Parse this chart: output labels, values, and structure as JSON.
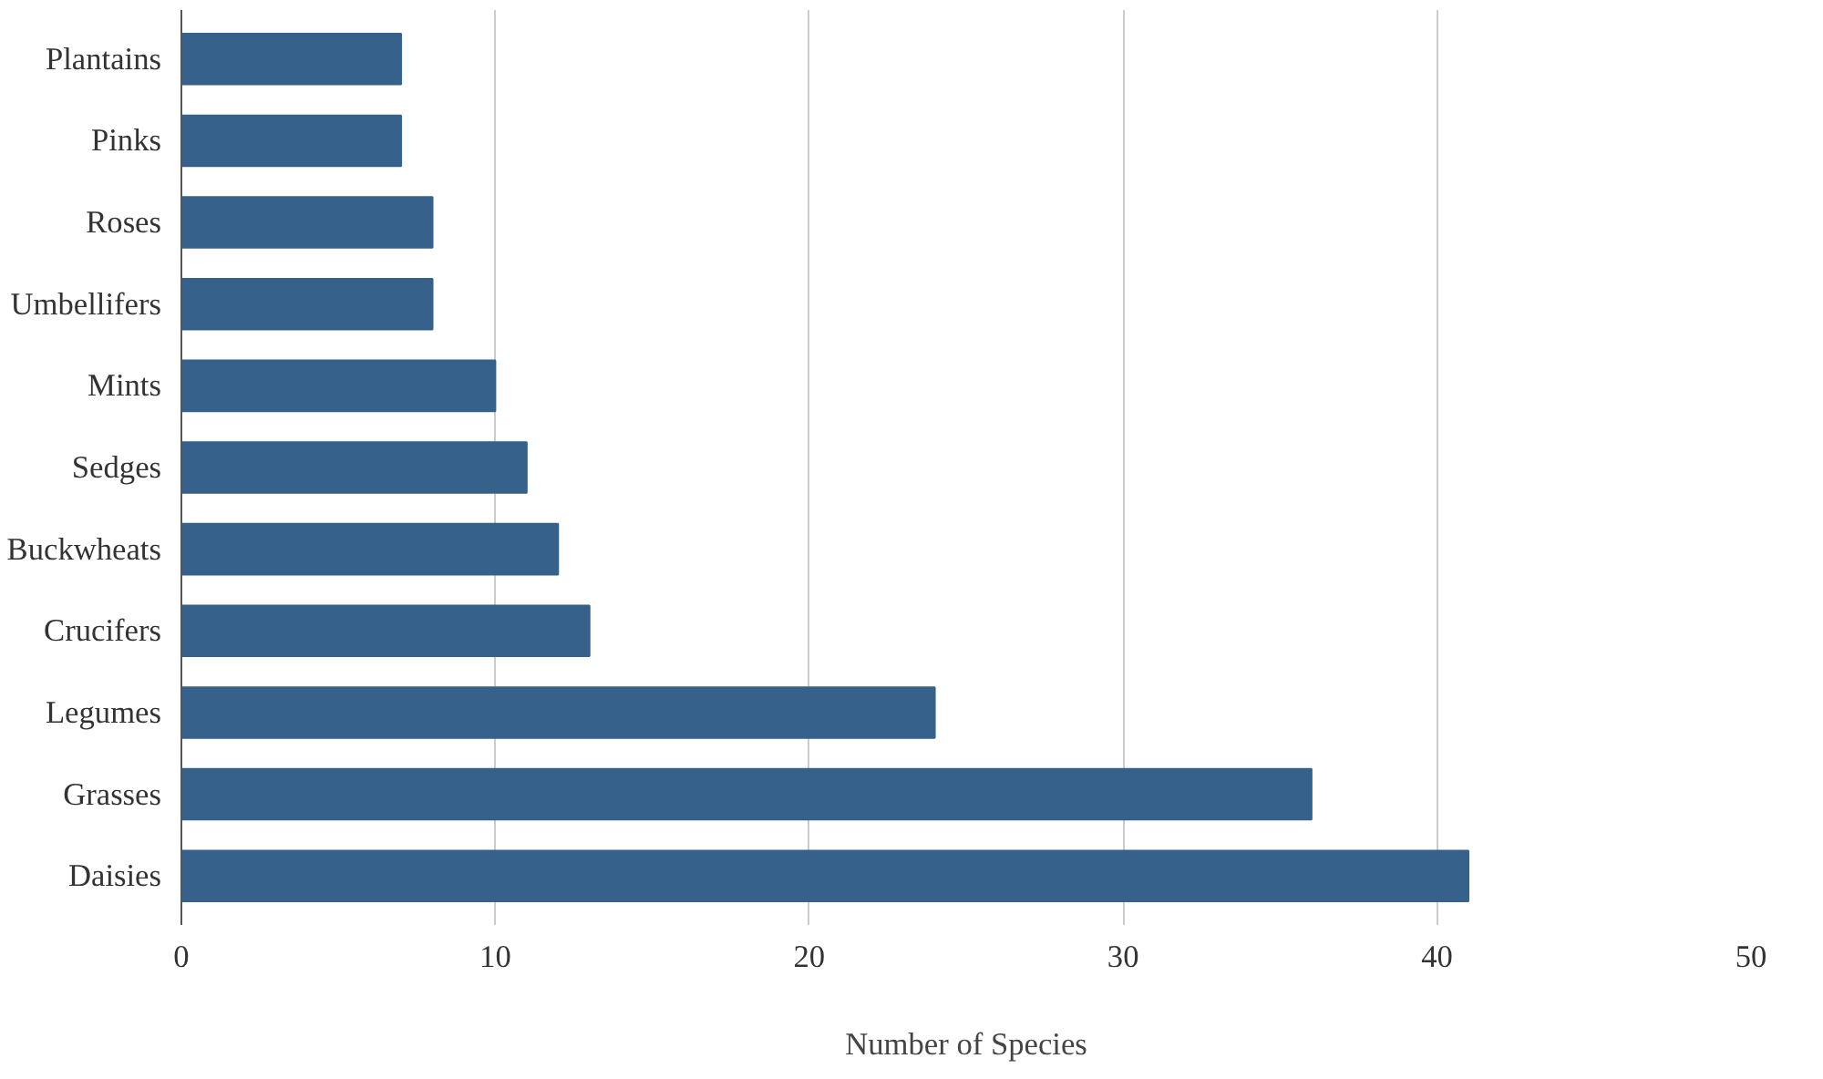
{
  "chart_data": {
    "type": "bar",
    "orientation": "horizontal",
    "xlabel": "Number of Species",
    "categories": [
      "Plantains",
      "Pinks",
      "Roses",
      "Umbellifers",
      "Mints",
      "Sedges",
      "Buckwheats",
      "Crucifers",
      "Legumes",
      "Grasses",
      "Daisies"
    ],
    "values": [
      7,
      7,
      8,
      8,
      10,
      11,
      12,
      13,
      24,
      36,
      41
    ],
    "color": "#35618a",
    "xlim": [
      0,
      50
    ],
    "xticks": [
      0,
      10,
      20,
      30,
      40,
      50
    ],
    "grid": "x"
  }
}
